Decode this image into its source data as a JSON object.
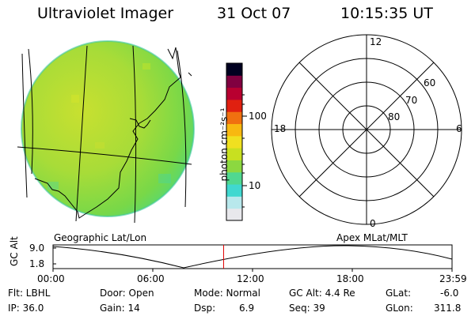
{
  "header": {
    "instrument": "Ultraviolet Imager",
    "date": "31 Oct 07",
    "time": "10:15:35 UT"
  },
  "colorbar": {
    "unit_label": "photon cm⁻²s⁻¹",
    "ticks": [
      "100",
      "10"
    ],
    "scale": "log",
    "colors": [
      "#e8e8ec",
      "#b8e8ec",
      "#40d8d0",
      "#50d890",
      "#8cd840",
      "#c8e020",
      "#f0e020",
      "#f8b810",
      "#f07010",
      "#e02010",
      "#b80030",
      "#800040",
      "#000020"
    ]
  },
  "polar_plot": {
    "mlt_labels": {
      "top": "12",
      "left": "18",
      "right": "6",
      "bottom": "0"
    },
    "lat_labels": [
      "60",
      "70",
      "80"
    ]
  },
  "coordinate_labels": {
    "left": "Geographic Lat/Lon",
    "right": "Apex MLat/MLT"
  },
  "altitude_track": {
    "axis_label": "GC Alt",
    "ticks": [
      "9.0",
      "1.8"
    ],
    "time_ticks": [
      "00:00",
      "06:00",
      "12:00",
      "18:00",
      "23:59"
    ],
    "current_time_marker_hours": 10.26,
    "marker_color": "#e00000"
  },
  "status": {
    "flt": "Flt: LBHL",
    "ip": "IP: 36.0",
    "door": "Door: Open",
    "gain": "Gain: 14",
    "mode": "Mode: Normal",
    "dsp_label": "Dsp:",
    "dsp_value": "6.9",
    "gc_alt": "GC Alt: 4.4 Re",
    "seq": "Seq: 39",
    "glat_label": "GLat:",
    "glat_value": "-6.0",
    "glon_label": "GLon:",
    "glon_value": "311.8"
  }
}
